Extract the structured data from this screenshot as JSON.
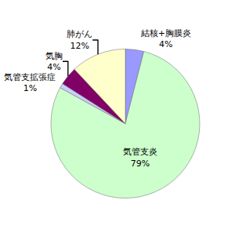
{
  "chart_data": {
    "type": "pie",
    "categories": [
      "結核+胸膜炎",
      "気管支炎",
      "気管支拡張症",
      "気胸",
      "肺がん"
    ],
    "values": [
      4,
      79,
      1,
      4,
      12
    ],
    "value_labels": [
      "4%",
      "79%",
      "1%",
      "4%",
      "12%"
    ],
    "colors": [
      "#9999ff",
      "#ccffcc",
      "#ccccff",
      "#800066",
      "#ffffcc"
    ],
    "data_labels": true
  }
}
